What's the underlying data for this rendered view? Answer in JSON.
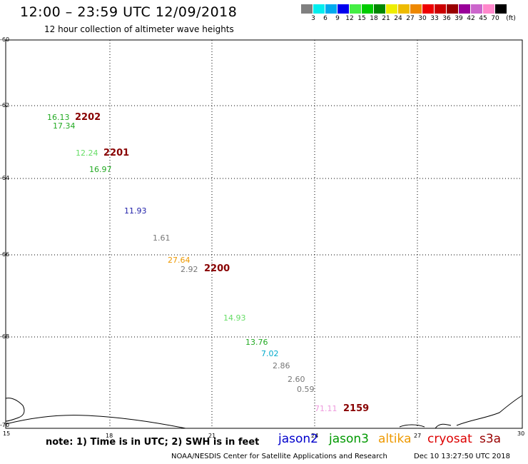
{
  "header": {
    "title": "12:00 – 23:59 UTC 12/09/2018",
    "subtitle": "12 hour collection of altimeter wave heights"
  },
  "colorbar": {
    "swatches": [
      "#808080",
      "#00eeee",
      "#00aaee",
      "#0000ee",
      "#44ee44",
      "#00cc00",
      "#008800",
      "#eeee00",
      "#eebb00",
      "#ee8800",
      "#ee0000",
      "#cc0000",
      "#990000",
      "#990099",
      "#cc66cc",
      "#ff88cc",
      "#000000"
    ],
    "labels": [
      "3",
      "6",
      "9",
      "12",
      "15",
      "18",
      "21",
      "24",
      "27",
      "30",
      "33",
      "36",
      "39",
      "42",
      "45",
      "70"
    ],
    "unit": "(ft)"
  },
  "axes": {
    "lat_labels": [
      "-60",
      "-62",
      "-64",
      "-66",
      "-68",
      "-70"
    ],
    "lon_labels": [
      "15",
      "18",
      "21",
      "24",
      "27",
      "30"
    ]
  },
  "observations": [
    {
      "value": "16.13",
      "color": "#22aa22"
    },
    {
      "value": "17.34",
      "color": "#22aa22"
    },
    {
      "value": "12.24",
      "color": "#66dd66"
    },
    {
      "value": "16.97",
      "color": "#22aa22"
    },
    {
      "value": "11.93",
      "color": "#2222aa"
    },
    {
      "value": "1.61",
      "color": "#777777"
    },
    {
      "value": "27.64",
      "color": "#ee9900"
    },
    {
      "value": "2.92",
      "color": "#777777"
    },
    {
      "value": "14.93",
      "color": "#66dd66"
    },
    {
      "value": "13.76",
      "color": "#22aa22"
    },
    {
      "value": "7.02",
      "color": "#00aacc"
    },
    {
      "value": "2.86",
      "color": "#777777"
    },
    {
      "value": "2.60",
      "color": "#777777"
    },
    {
      "value": "0.59",
      "color": "#777777"
    },
    {
      "value": "71.11",
      "color": "#ee99dd"
    }
  ],
  "time_stamps": [
    "2202",
    "2201",
    "2200",
    "2159"
  ],
  "stamp_color": "#880000",
  "footer": {
    "note": "note: 1) Time is in UTC; 2) SWH is in feet",
    "satellites": [
      {
        "name": "jason2",
        "color": "#0000cc"
      },
      {
        "name": "jason3",
        "color": "#009900"
      },
      {
        "name": "altika",
        "color": "#ee9900"
      },
      {
        "name": "cryosat",
        "color": "#dd0000"
      },
      {
        "name": "s3a",
        "color": "#990000"
      }
    ],
    "credit": "NOAA/NESDIS Center for Satellite Applications and Research",
    "timestamp": "Dec 10 13:27:50 UTC 2018"
  }
}
